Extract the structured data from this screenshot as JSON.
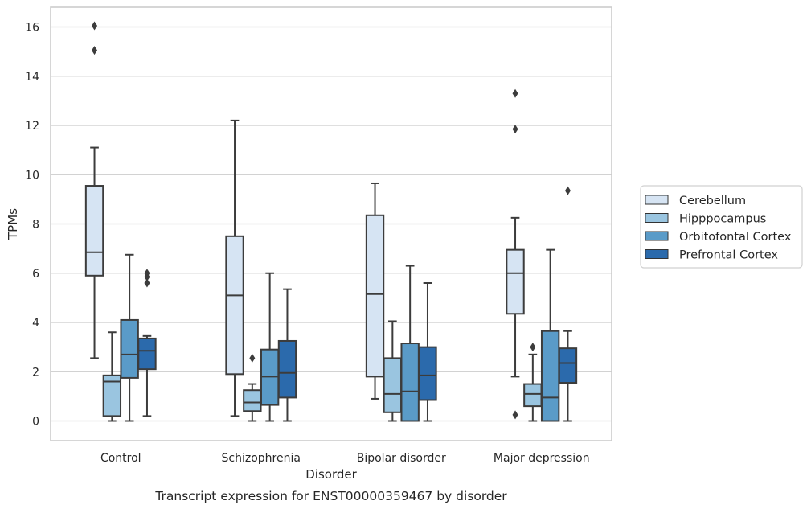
{
  "chart_data": {
    "type": "box",
    "title": "",
    "caption": "Transcript expression for ENST00000359467 by disorder",
    "xlabel": "Disorder",
    "ylabel": "TPMs",
    "ylim": [
      -0.8,
      16.8
    ],
    "yticks": [
      0,
      2,
      4,
      6,
      8,
      10,
      12,
      14,
      16
    ],
    "grid": "horizontal",
    "legend_position": "right",
    "categories": [
      "Control",
      "Schizophrenia",
      "Bipolar disorder",
      "Major depression"
    ],
    "series": [
      {
        "name": "Cerebellum",
        "color": "#d6e4f3",
        "boxes": [
          {
            "whislo": 2.55,
            "q1": 5.9,
            "med": 6.85,
            "q3": 9.55,
            "whishi": 11.1,
            "fliers": [
              15.05,
              16.05
            ]
          },
          {
            "whislo": 0.2,
            "q1": 1.9,
            "med": 5.1,
            "q3": 7.5,
            "whishi": 12.2,
            "fliers": []
          },
          {
            "whislo": 0.9,
            "q1": 1.8,
            "med": 5.15,
            "q3": 8.35,
            "whishi": 9.65,
            "fliers": []
          },
          {
            "whislo": 1.8,
            "q1": 4.35,
            "med": 6.0,
            "q3": 6.95,
            "whishi": 8.25,
            "fliers": [
              0.25,
              11.85,
              13.3
            ]
          }
        ]
      },
      {
        "name": "Hipppocampus",
        "color": "#9ac5e0",
        "boxes": [
          {
            "whislo": 0.0,
            "q1": 0.2,
            "med": 1.6,
            "q3": 1.85,
            "whishi": 3.6,
            "fliers": []
          },
          {
            "whislo": 0.0,
            "q1": 0.4,
            "med": 0.75,
            "q3": 1.25,
            "whishi": 1.5,
            "fliers": [
              2.55
            ]
          },
          {
            "whislo": 0.0,
            "q1": 0.35,
            "med": 1.1,
            "q3": 2.55,
            "whishi": 4.05,
            "fliers": []
          },
          {
            "whislo": 0.0,
            "q1": 0.6,
            "med": 1.1,
            "q3": 1.5,
            "whishi": 2.7,
            "fliers": [
              3.0
            ]
          }
        ]
      },
      {
        "name": "Orbitofontal Cortex",
        "color": "#5a9bc8",
        "boxes": [
          {
            "whislo": 0.0,
            "q1": 1.75,
            "med": 2.7,
            "q3": 4.1,
            "whishi": 6.75,
            "fliers": []
          },
          {
            "whislo": 0.0,
            "q1": 0.65,
            "med": 1.8,
            "q3": 2.9,
            "whishi": 6.0,
            "fliers": []
          },
          {
            "whislo": 0.0,
            "q1": 0.0,
            "med": 1.2,
            "q3": 3.15,
            "whishi": 6.3,
            "fliers": []
          },
          {
            "whislo": 0.0,
            "q1": 0.0,
            "med": 0.95,
            "q3": 3.65,
            "whishi": 6.95,
            "fliers": []
          }
        ]
      },
      {
        "name": "Prefrontal Cortex",
        "color": "#2b6aac",
        "boxes": [
          {
            "whislo": 0.2,
            "q1": 2.1,
            "med": 2.85,
            "q3": 3.35,
            "whishi": 3.45,
            "fliers": [
              5.6,
              5.85,
              6.0
            ]
          },
          {
            "whislo": 0.0,
            "q1": 0.95,
            "med": 1.95,
            "q3": 3.25,
            "whishi": 5.35,
            "fliers": []
          },
          {
            "whislo": 0.0,
            "q1": 0.85,
            "med": 1.85,
            "q3": 3.0,
            "whishi": 5.6,
            "fliers": []
          },
          {
            "whislo": 0.0,
            "q1": 1.55,
            "med": 2.35,
            "q3": 2.95,
            "whishi": 3.65,
            "fliers": [
              9.35
            ]
          }
        ]
      }
    ]
  }
}
